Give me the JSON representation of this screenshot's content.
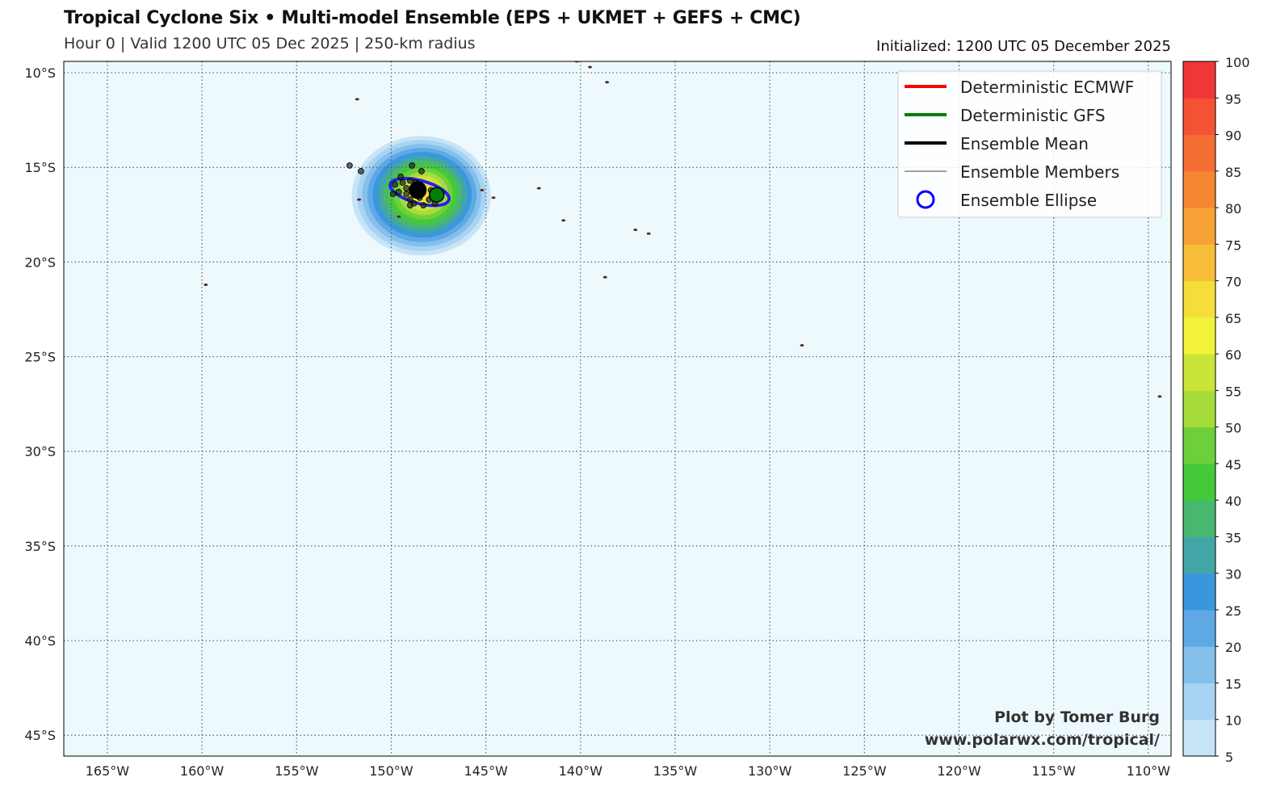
{
  "header": {
    "title": "Tropical Cyclone Six • Multi-model Ensemble (EPS + UKMET + GEFS + CMC)",
    "subtitle": "Hour 0 | Valid 1200 UTC 05 Dec 2025 | 250-km radius",
    "initialized": "Initialized: 1200 UTC 05 December 2025"
  },
  "legend": {
    "items": [
      {
        "label": "Deterministic ECMWF",
        "color": "#ff0000",
        "style": "thick-line"
      },
      {
        "label": "Deterministic GFS",
        "color": "#008000",
        "style": "thick-line"
      },
      {
        "label": "Ensemble Mean",
        "color": "#000000",
        "style": "thick-line"
      },
      {
        "label": "Ensemble Members",
        "color": "#000000",
        "style": "thin-line"
      },
      {
        "label": "Ensemble Ellipse",
        "color": "#0000ff",
        "style": "circle"
      }
    ]
  },
  "credit": {
    "line1": "Plot by Tomer Burg",
    "line2": "www.polarwx.com/tropical/"
  },
  "chart_data": {
    "type": "map",
    "lon_range": [
      -167.3,
      -108.8
    ],
    "lat_range": [
      -46.1,
      -9.4
    ],
    "x_ticks": [
      {
        "value": -165,
        "label": "165°W"
      },
      {
        "value": -160,
        "label": "160°W"
      },
      {
        "value": -155,
        "label": "155°W"
      },
      {
        "value": -150,
        "label": "150°W"
      },
      {
        "value": -145,
        "label": "145°W"
      },
      {
        "value": -140,
        "label": "140°W"
      },
      {
        "value": -135,
        "label": "135°W"
      },
      {
        "value": -130,
        "label": "130°W"
      },
      {
        "value": -125,
        "label": "125°W"
      },
      {
        "value": -120,
        "label": "120°W"
      },
      {
        "value": -115,
        "label": "115°W"
      },
      {
        "value": -110,
        "label": "110°W"
      }
    ],
    "y_ticks": [
      {
        "value": -10,
        "label": "10°S"
      },
      {
        "value": -15,
        "label": "15°S"
      },
      {
        "value": -20,
        "label": "20°S"
      },
      {
        "value": -25,
        "label": "25°S"
      },
      {
        "value": -30,
        "label": "30°S"
      },
      {
        "value": -35,
        "label": "35°S"
      },
      {
        "value": -40,
        "label": "40°S"
      },
      {
        "value": -45,
        "label": "45°S"
      }
    ],
    "colorbar": {
      "levels": [
        5,
        10,
        15,
        20,
        25,
        30,
        35,
        40,
        45,
        50,
        55,
        60,
        65,
        70,
        75,
        80,
        85,
        90,
        95,
        100
      ],
      "labels": [
        "5",
        "10",
        "15",
        "20",
        "25",
        "30",
        "35",
        "40",
        "45",
        "50",
        "55",
        "60",
        "65",
        "70",
        "75",
        "80",
        "85",
        "90",
        "95",
        "100"
      ],
      "colors": [
        "#c6e4f6",
        "#a8d3f2",
        "#85c0ec",
        "#5ea9e5",
        "#3a97de",
        "#42a6a6",
        "#48b770",
        "#44c93a",
        "#6dd03a",
        "#a5dc3a",
        "#cbe43a",
        "#f2f23a",
        "#f5de3a",
        "#f7bd38",
        "#f7a236",
        "#f58632",
        "#f46d32",
        "#f45232",
        "#f03636"
      ]
    },
    "strike_probability": {
      "center_lon": -148.5,
      "center_lat": -16.5,
      "max": 65
    },
    "ensemble_mean": {
      "lon": -148.6,
      "lat": -16.2
    },
    "gfs": {
      "lon": -147.6,
      "lat": -16.45
    },
    "ellipse": {
      "center_lon": -148.5,
      "center_lat": -16.3,
      "semi_major_deg": 1.6,
      "semi_minor_deg": 0.6,
      "rotation_deg": 15
    },
    "members": [
      [
        -152.2,
        -14.9
      ],
      [
        -151.6,
        -15.2
      ],
      [
        -149.5,
        -15.5
      ],
      [
        -148.9,
        -14.9
      ],
      [
        -148.4,
        -15.2
      ],
      [
        -149.8,
        -15.9
      ],
      [
        -149.4,
        -15.8
      ],
      [
        -149.0,
        -15.7
      ],
      [
        -148.7,
        -15.8
      ],
      [
        -149.6,
        -16.3
      ],
      [
        -149.2,
        -16.1
      ],
      [
        -149.0,
        -16.7
      ],
      [
        -148.5,
        -16.6
      ],
      [
        -148.0,
        -16.7
      ],
      [
        -148.3,
        -17.0
      ],
      [
        -149.0,
        -17.0
      ],
      [
        -147.9,
        -16.2
      ],
      [
        -149.9,
        -16.4
      ],
      [
        -148.8,
        -16.9
      ],
      [
        -147.7,
        -16.9
      ],
      [
        -149.2,
        -16.4
      ]
    ]
  }
}
